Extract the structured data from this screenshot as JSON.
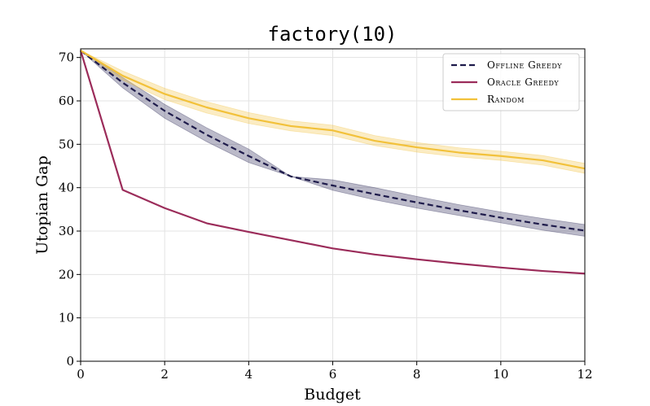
{
  "chart_data": {
    "type": "line",
    "title_main": "factory",
    "title_arg": "(10)",
    "xlabel": "Budget",
    "ylabel": "Utopian Gap",
    "xlim": [
      0,
      12
    ],
    "ylim": [
      0,
      72
    ],
    "xticks": [
      "0",
      "2",
      "4",
      "6",
      "8",
      "10",
      "12"
    ],
    "yticks": [
      "0",
      "10",
      "20",
      "30",
      "40",
      "50",
      "60",
      "70"
    ],
    "grid": true,
    "legend_position": "top-right",
    "series": [
      {
        "name": "Offline Greedy",
        "color": "#1e1b4b",
        "style": "dashed",
        "x": [
          0,
          1,
          2,
          3,
          4,
          5,
          6,
          7,
          8,
          9,
          10,
          11,
          12
        ],
        "values": [
          71.6,
          64.2,
          57.7,
          52.2,
          47.3,
          42.6,
          40.5,
          38.5,
          36.6,
          34.8,
          33.1,
          31.5,
          30.1
        ],
        "lower": [
          71.6,
          63.0,
          56.0,
          50.6,
          45.8,
          42.6,
          39.4,
          37.2,
          35.3,
          33.6,
          31.9,
          30.2,
          28.8
        ],
        "upper": [
          71.6,
          65.4,
          59.2,
          53.8,
          48.9,
          42.6,
          41.8,
          40.0,
          38.0,
          36.1,
          34.4,
          32.9,
          31.5
        ]
      },
      {
        "name": "Oracle Greedy",
        "color": "#9b2c5a",
        "style": "solid",
        "x": [
          0,
          1,
          2,
          3,
          4,
          5,
          6,
          7,
          8,
          9,
          10,
          11,
          12
        ],
        "values": [
          71.6,
          39.5,
          35.3,
          31.8,
          29.8,
          27.9,
          26.0,
          24.6,
          23.5,
          22.5,
          21.6,
          20.8,
          20.2
        ]
      },
      {
        "name": "Random",
        "color": "#f2c13a",
        "style": "solid",
        "x": [
          0,
          1,
          2,
          3,
          4,
          5,
          6,
          7,
          8,
          9,
          10,
          11,
          12
        ],
        "values": [
          71.6,
          65.8,
          61.6,
          58.5,
          56.0,
          54.2,
          53.2,
          50.8,
          49.3,
          48.1,
          47.3,
          46.3,
          44.4
        ],
        "lower": [
          71.6,
          64.8,
          60.3,
          57.2,
          54.8,
          53.1,
          52.0,
          49.7,
          48.2,
          47.1,
          46.3,
          45.2,
          43.3
        ],
        "upper": [
          71.6,
          66.9,
          62.9,
          59.8,
          57.3,
          55.4,
          54.4,
          52.0,
          50.4,
          49.2,
          48.4,
          47.4,
          45.6
        ]
      }
    ]
  }
}
